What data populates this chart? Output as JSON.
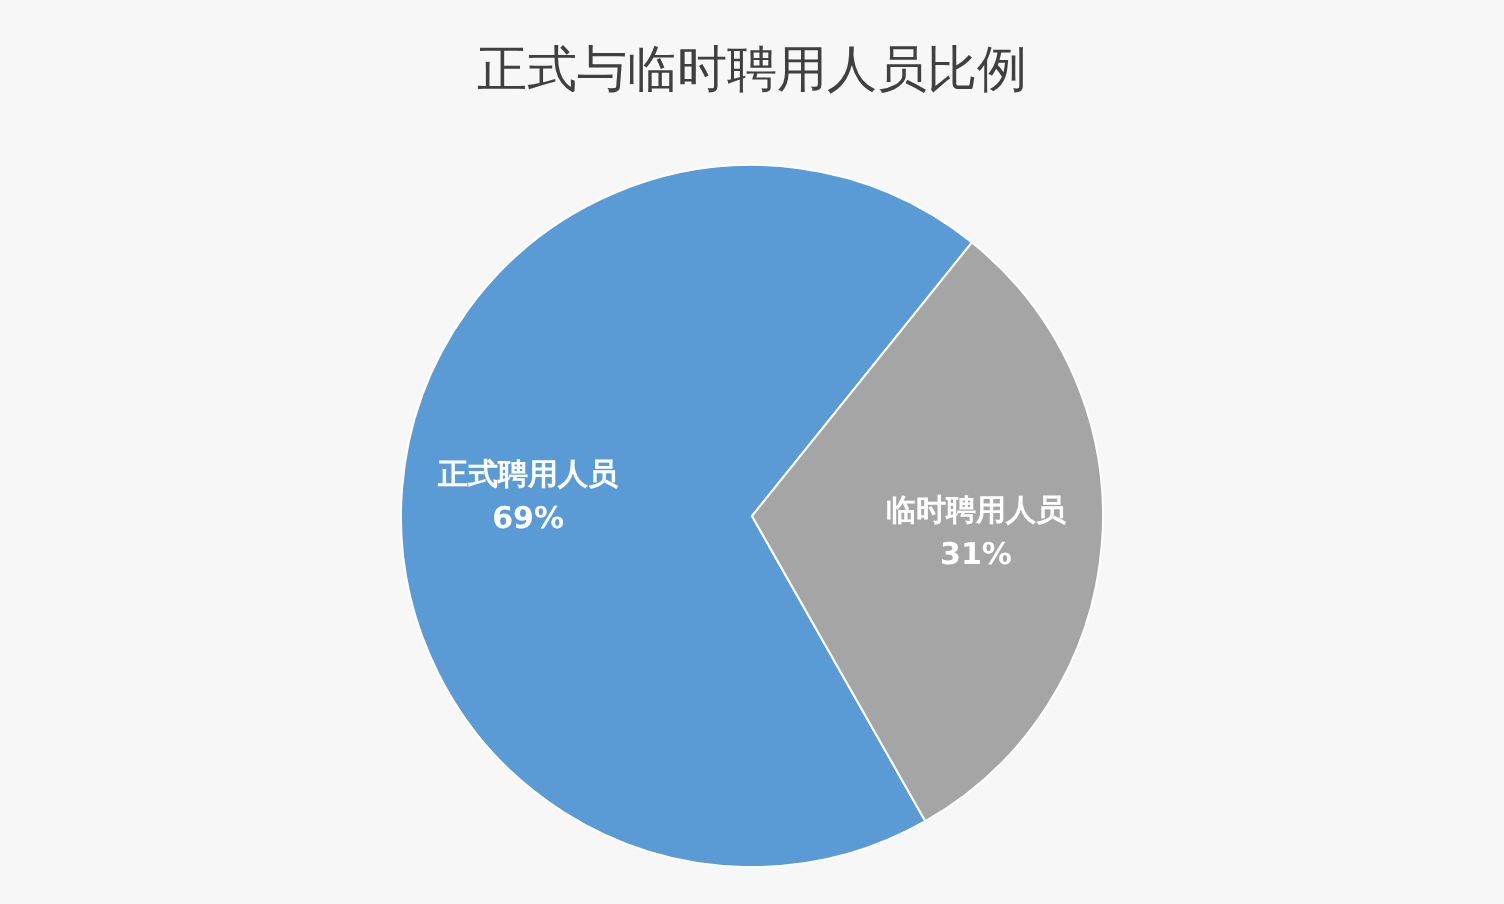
{
  "chart_data": {
    "type": "pie",
    "title": "正式与临时聘用人员比例",
    "categories": [
      "正式聘用人员",
      "临时聘用人员"
    ],
    "values": [
      69,
      31
    ],
    "value_labels": [
      "69%",
      "31%"
    ],
    "colors": [
      "#5b9bd5",
      "#a5a5a5"
    ],
    "legend": false
  }
}
